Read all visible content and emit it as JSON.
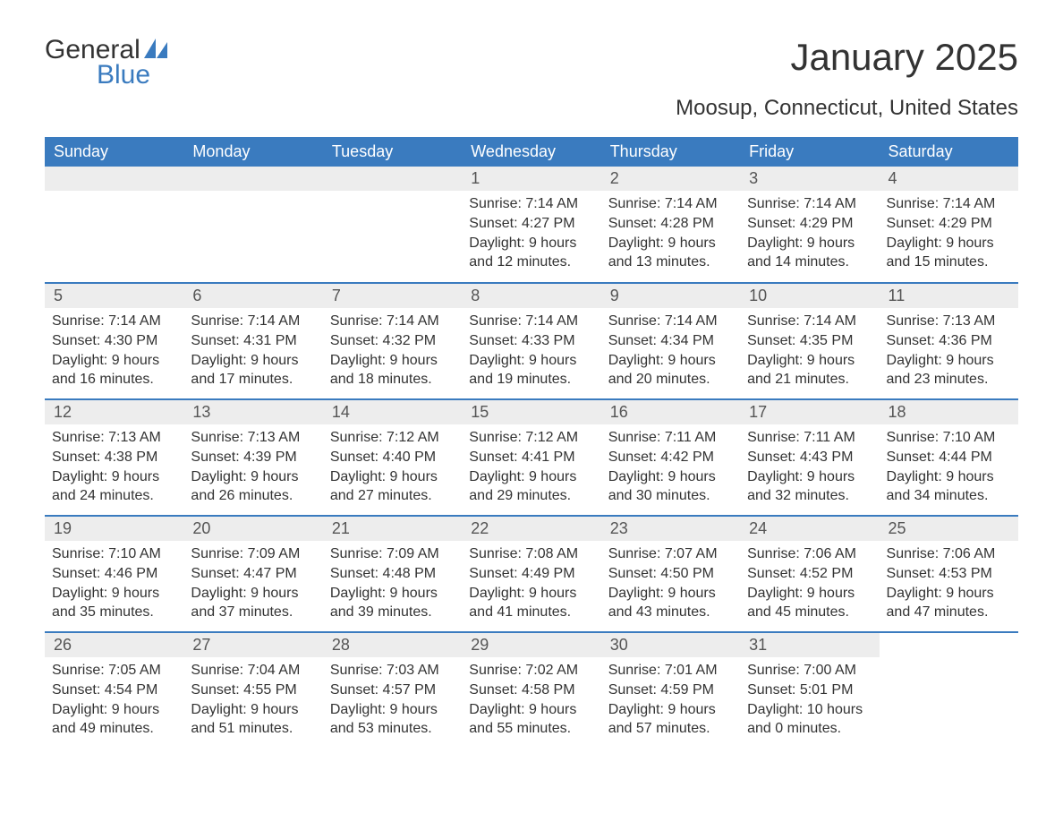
{
  "logo": {
    "word1": "General",
    "word2": "Blue",
    "brand_color": "#3a7bbf"
  },
  "title": "January 2025",
  "location": "Moosup, Connecticut, United States",
  "colors": {
    "header_bg": "#3a7bbf",
    "header_text": "#ffffff",
    "daynum_bg": "#ededed",
    "daynum_text": "#555555",
    "body_text": "#333333",
    "page_bg": "#ffffff",
    "row_sep": "#3a7bbf"
  },
  "day_headers": [
    "Sunday",
    "Monday",
    "Tuesday",
    "Wednesday",
    "Thursday",
    "Friday",
    "Saturday"
  ],
  "weeks": [
    [
      null,
      null,
      null,
      {
        "n": "1",
        "sunrise": "7:14 AM",
        "sunset": "4:27 PM",
        "daylight": "9 hours and 12 minutes."
      },
      {
        "n": "2",
        "sunrise": "7:14 AM",
        "sunset": "4:28 PM",
        "daylight": "9 hours and 13 minutes."
      },
      {
        "n": "3",
        "sunrise": "7:14 AM",
        "sunset": "4:29 PM",
        "daylight": "9 hours and 14 minutes."
      },
      {
        "n": "4",
        "sunrise": "7:14 AM",
        "sunset": "4:29 PM",
        "daylight": "9 hours and 15 minutes."
      }
    ],
    [
      {
        "n": "5",
        "sunrise": "7:14 AM",
        "sunset": "4:30 PM",
        "daylight": "9 hours and 16 minutes."
      },
      {
        "n": "6",
        "sunrise": "7:14 AM",
        "sunset": "4:31 PM",
        "daylight": "9 hours and 17 minutes."
      },
      {
        "n": "7",
        "sunrise": "7:14 AM",
        "sunset": "4:32 PM",
        "daylight": "9 hours and 18 minutes."
      },
      {
        "n": "8",
        "sunrise": "7:14 AM",
        "sunset": "4:33 PM",
        "daylight": "9 hours and 19 minutes."
      },
      {
        "n": "9",
        "sunrise": "7:14 AM",
        "sunset": "4:34 PM",
        "daylight": "9 hours and 20 minutes."
      },
      {
        "n": "10",
        "sunrise": "7:14 AM",
        "sunset": "4:35 PM",
        "daylight": "9 hours and 21 minutes."
      },
      {
        "n": "11",
        "sunrise": "7:13 AM",
        "sunset": "4:36 PM",
        "daylight": "9 hours and 23 minutes."
      }
    ],
    [
      {
        "n": "12",
        "sunrise": "7:13 AM",
        "sunset": "4:38 PM",
        "daylight": "9 hours and 24 minutes."
      },
      {
        "n": "13",
        "sunrise": "7:13 AM",
        "sunset": "4:39 PM",
        "daylight": "9 hours and 26 minutes."
      },
      {
        "n": "14",
        "sunrise": "7:12 AM",
        "sunset": "4:40 PM",
        "daylight": "9 hours and 27 minutes."
      },
      {
        "n": "15",
        "sunrise": "7:12 AM",
        "sunset": "4:41 PM",
        "daylight": "9 hours and 29 minutes."
      },
      {
        "n": "16",
        "sunrise": "7:11 AM",
        "sunset": "4:42 PM",
        "daylight": "9 hours and 30 minutes."
      },
      {
        "n": "17",
        "sunrise": "7:11 AM",
        "sunset": "4:43 PM",
        "daylight": "9 hours and 32 minutes."
      },
      {
        "n": "18",
        "sunrise": "7:10 AM",
        "sunset": "4:44 PM",
        "daylight": "9 hours and 34 minutes."
      }
    ],
    [
      {
        "n": "19",
        "sunrise": "7:10 AM",
        "sunset": "4:46 PM",
        "daylight": "9 hours and 35 minutes."
      },
      {
        "n": "20",
        "sunrise": "7:09 AM",
        "sunset": "4:47 PM",
        "daylight": "9 hours and 37 minutes."
      },
      {
        "n": "21",
        "sunrise": "7:09 AM",
        "sunset": "4:48 PM",
        "daylight": "9 hours and 39 minutes."
      },
      {
        "n": "22",
        "sunrise": "7:08 AM",
        "sunset": "4:49 PM",
        "daylight": "9 hours and 41 minutes."
      },
      {
        "n": "23",
        "sunrise": "7:07 AM",
        "sunset": "4:50 PM",
        "daylight": "9 hours and 43 minutes."
      },
      {
        "n": "24",
        "sunrise": "7:06 AM",
        "sunset": "4:52 PM",
        "daylight": "9 hours and 45 minutes."
      },
      {
        "n": "25",
        "sunrise": "7:06 AM",
        "sunset": "4:53 PM",
        "daylight": "9 hours and 47 minutes."
      }
    ],
    [
      {
        "n": "26",
        "sunrise": "7:05 AM",
        "sunset": "4:54 PM",
        "daylight": "9 hours and 49 minutes."
      },
      {
        "n": "27",
        "sunrise": "7:04 AM",
        "sunset": "4:55 PM",
        "daylight": "9 hours and 51 minutes."
      },
      {
        "n": "28",
        "sunrise": "7:03 AM",
        "sunset": "4:57 PM",
        "daylight": "9 hours and 53 minutes."
      },
      {
        "n": "29",
        "sunrise": "7:02 AM",
        "sunset": "4:58 PM",
        "daylight": "9 hours and 55 minutes."
      },
      {
        "n": "30",
        "sunrise": "7:01 AM",
        "sunset": "4:59 PM",
        "daylight": "9 hours and 57 minutes."
      },
      {
        "n": "31",
        "sunrise": "7:00 AM",
        "sunset": "5:01 PM",
        "daylight": "10 hours and 0 minutes."
      },
      null
    ]
  ],
  "labels": {
    "sunrise": "Sunrise: ",
    "sunset": "Sunset: ",
    "daylight": "Daylight: "
  }
}
